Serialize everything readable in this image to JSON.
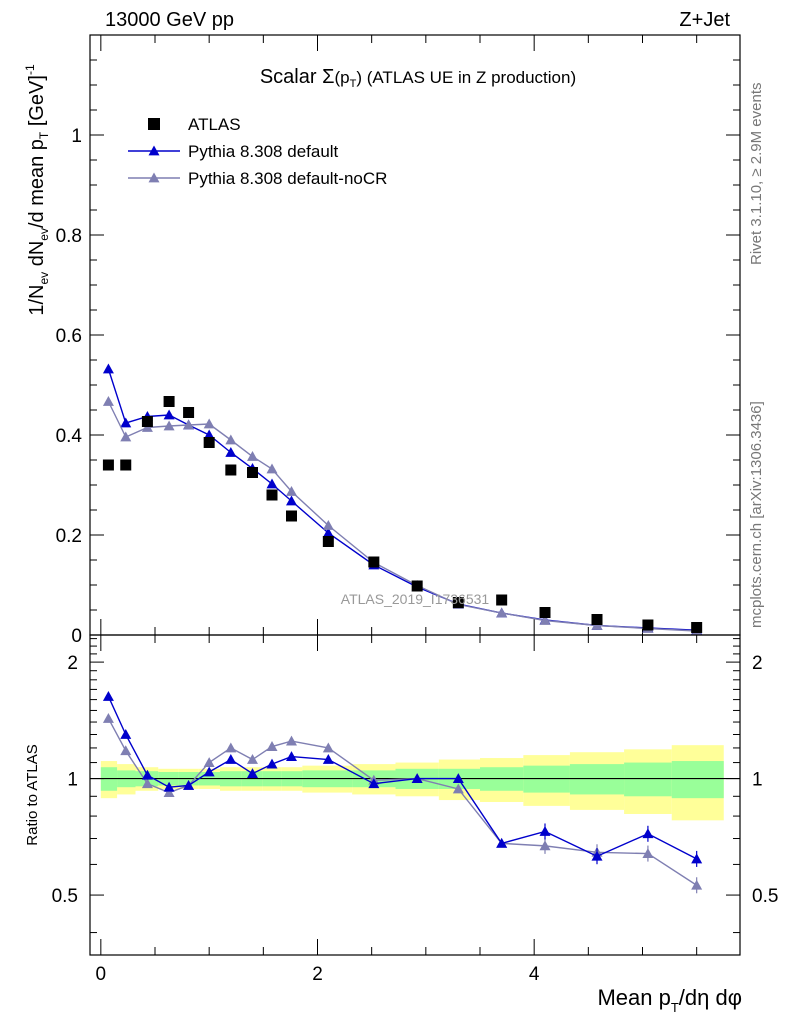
{
  "header": {
    "energy_label": "13000 GeV pp",
    "process_label": "Z+Jet"
  },
  "side_labels": {
    "rivet": "Rivet 3.1.10, ≥ 2.9M events",
    "source": "mcplots.cern.ch [arXiv:1306.3436]"
  },
  "chart_data": [
    {
      "type": "scatter",
      "panel": "main",
      "title": "Scalar Σ(p_T) (ATLAS UE in Z production)",
      "watermark": "ATLAS_2019_I1736531",
      "ylabel": "1/N_ev dN_ev/d mean p_T [GeV]^-1",
      "xlim": [
        -0.1,
        5.9
      ],
      "ylim": [
        0,
        1.2
      ],
      "y_ticks": [
        "0",
        "0.2",
        "0.4",
        "0.6",
        "0.8",
        "1"
      ],
      "legend_position": "top-left",
      "series": [
        {
          "name": "ATLAS",
          "style": "markers",
          "color": "#000000",
          "x": [
            0.07,
            0.23,
            0.43,
            0.63,
            0.81,
            1.0,
            1.2,
            1.4,
            1.58,
            1.76,
            2.1,
            2.52,
            2.92,
            3.3,
            3.7,
            4.1,
            4.58,
            5.05,
            5.5
          ],
          "y": [
            0.34,
            0.34,
            0.427,
            0.467,
            0.445,
            0.385,
            0.33,
            0.325,
            0.28,
            0.238,
            0.187,
            0.146,
            0.098,
            0.065,
            0.07,
            0.045,
            0.031,
            0.02,
            0.015
          ]
        },
        {
          "name": "Pythia 8.308 default",
          "style": "line-markers",
          "color": "#0000cc",
          "x": [
            0.07,
            0.23,
            0.43,
            0.63,
            0.81,
            1.0,
            1.2,
            1.4,
            1.58,
            1.76,
            2.1,
            2.52,
            2.92,
            3.3,
            3.7,
            4.1,
            4.58,
            5.05,
            5.5
          ],
          "y": [
            0.532,
            0.424,
            0.437,
            0.44,
            0.42,
            0.4,
            0.365,
            0.333,
            0.302,
            0.268,
            0.204,
            0.14,
            0.096,
            0.062,
            0.044,
            0.03,
            0.019,
            0.014,
            0.0095
          ]
        },
        {
          "name": "Pythia 8.308 default-noCR",
          "style": "line-markers",
          "color": "#7f7fb2",
          "x": [
            0.07,
            0.23,
            0.43,
            0.63,
            0.81,
            1.0,
            1.2,
            1.4,
            1.58,
            1.76,
            2.1,
            2.52,
            2.92,
            3.3,
            3.7,
            4.1,
            4.58,
            5.05,
            5.5
          ],
          "y": [
            0.467,
            0.396,
            0.415,
            0.418,
            0.42,
            0.422,
            0.39,
            0.357,
            0.332,
            0.287,
            0.219,
            0.145,
            0.099,
            0.061,
            0.044,
            0.029,
            0.019,
            0.013,
            0.008
          ]
        }
      ]
    },
    {
      "type": "line",
      "panel": "ratio",
      "ylabel": "Ratio to ATLAS",
      "xlabel": "Mean p_T/dη dφ",
      "xlim": [
        -0.1,
        5.9
      ],
      "ylim": [
        0.35,
        2.35
      ],
      "x_ticks": [
        "0",
        "2",
        "4"
      ],
      "y_ticks": [
        "0.5",
        "1",
        "2"
      ],
      "bands": {
        "bin_edges": [
          0.0,
          0.15,
          0.32,
          0.53,
          0.72,
          0.9,
          1.1,
          1.3,
          1.49,
          1.67,
          1.86,
          2.32,
          2.72,
          3.12,
          3.5,
          3.9,
          4.33,
          4.83,
          5.27,
          5.75
        ],
        "green_half_width": [
          0.07,
          0.05,
          0.045,
          0.04,
          0.04,
          0.04,
          0.045,
          0.045,
          0.045,
          0.045,
          0.05,
          0.05,
          0.06,
          0.06,
          0.07,
          0.08,
          0.09,
          0.1,
          0.11
        ],
        "yellow_half_width": [
          0.11,
          0.09,
          0.07,
          0.06,
          0.06,
          0.06,
          0.07,
          0.07,
          0.07,
          0.07,
          0.08,
          0.09,
          0.1,
          0.12,
          0.13,
          0.15,
          0.17,
          0.19,
          0.22
        ]
      },
      "series": [
        {
          "name": "Pythia 8.308 default",
          "color": "#0000cc",
          "x": [
            0.07,
            0.23,
            0.43,
            0.63,
            0.81,
            1.0,
            1.2,
            1.4,
            1.58,
            1.76,
            2.1,
            2.52,
            2.92,
            3.3,
            3.7,
            4.1,
            4.58,
            5.05,
            5.5
          ],
          "y": [
            1.63,
            1.3,
            1.02,
            0.95,
            0.96,
            1.04,
            1.12,
            1.03,
            1.09,
            1.14,
            1.12,
            0.97,
            1.0,
            1.0,
            0.68,
            0.73,
            0.63,
            0.72,
            0.62
          ]
        },
        {
          "name": "Pythia 8.308 default-noCR",
          "color": "#7f7fb2",
          "x": [
            0.07,
            0.23,
            0.43,
            0.63,
            0.81,
            1.0,
            1.2,
            1.4,
            1.58,
            1.76,
            2.1,
            2.52,
            2.92,
            3.3,
            3.7,
            4.1,
            4.58,
            5.05,
            5.5
          ],
          "y": [
            1.43,
            1.18,
            0.97,
            0.92,
            0.96,
            1.1,
            1.2,
            1.12,
            1.21,
            1.25,
            1.2,
            0.99,
            1.0,
            0.94,
            0.68,
            0.67,
            0.645,
            0.64,
            0.53
          ]
        }
      ]
    }
  ]
}
